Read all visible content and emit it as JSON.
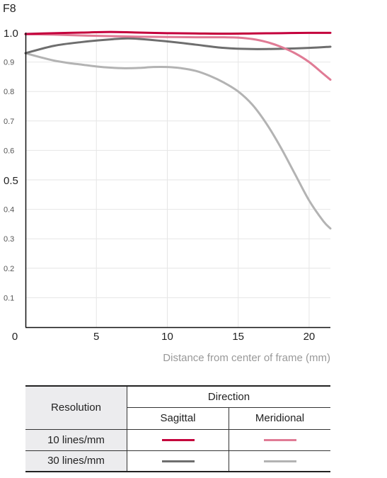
{
  "chart_data": {
    "type": "line",
    "title": "F8",
    "xlabel": "Distance from center of frame (mm)",
    "ylabel": "",
    "xlim": [
      0,
      21.5
    ],
    "ylim": [
      0,
      1.0
    ],
    "x_ticks": [
      {
        "value": 0,
        "label": "0"
      },
      {
        "value": 5,
        "label": "5"
      },
      {
        "value": 10,
        "label": "10"
      },
      {
        "value": 15,
        "label": "15"
      },
      {
        "value": 20,
        "label": "20"
      }
    ],
    "y_ticks": [
      {
        "value": 0.1,
        "label": "0.1",
        "emphasis": false
      },
      {
        "value": 0.2,
        "label": "0.2",
        "emphasis": false
      },
      {
        "value": 0.3,
        "label": "0.3",
        "emphasis": false
      },
      {
        "value": 0.4,
        "label": "0.4",
        "emphasis": false
      },
      {
        "value": 0.5,
        "label": "0.5",
        "emphasis": true
      },
      {
        "value": 0.6,
        "label": "0.6",
        "emphasis": false
      },
      {
        "value": 0.7,
        "label": "0.7",
        "emphasis": false
      },
      {
        "value": 0.8,
        "label": "0.8",
        "emphasis": false
      },
      {
        "value": 0.9,
        "label": "0.9",
        "emphasis": false
      },
      {
        "value": 1.0,
        "label": "1.0",
        "emphasis": true
      }
    ],
    "grid": true,
    "series": [
      {
        "key": "s10",
        "color": "#c4003c",
        "x": [
          0,
          2,
          4,
          6,
          8,
          10,
          12,
          14,
          16,
          18,
          20,
          21.5
        ],
        "y": [
          0.995,
          0.998,
          1.0,
          1.002,
          1.0,
          0.998,
          0.997,
          0.996,
          0.997,
          0.998,
          0.999,
          0.999
        ]
      },
      {
        "key": "m10",
        "color": "#e07b95",
        "x": [
          0,
          2,
          4,
          6,
          8,
          10,
          12,
          14,
          15,
          16,
          17,
          18,
          19,
          20,
          21,
          21.5
        ],
        "y": [
          0.995,
          0.993,
          0.99,
          0.988,
          0.986,
          0.985,
          0.984,
          0.984,
          0.983,
          0.978,
          0.968,
          0.952,
          0.93,
          0.9,
          0.86,
          0.84
        ]
      },
      {
        "key": "s30",
        "color": "#6e6e6e",
        "x": [
          0,
          2,
          4,
          6,
          7.5,
          10,
          12,
          14,
          16,
          18,
          20,
          21.5
        ],
        "y": [
          0.93,
          0.955,
          0.968,
          0.977,
          0.98,
          0.97,
          0.959,
          0.948,
          0.944,
          0.945,
          0.948,
          0.952
        ]
      },
      {
        "key": "m30",
        "color": "#b3b3b3",
        "x": [
          0,
          1,
          2,
          3,
          4,
          5,
          6,
          7,
          8,
          9,
          10,
          11,
          12,
          13,
          14,
          15,
          16,
          17,
          18,
          19,
          20,
          21,
          21.5
        ],
        "y": [
          0.93,
          0.917,
          0.905,
          0.897,
          0.891,
          0.885,
          0.881,
          0.879,
          0.88,
          0.883,
          0.883,
          0.879,
          0.87,
          0.853,
          0.83,
          0.8,
          0.755,
          0.69,
          0.61,
          0.52,
          0.43,
          0.36,
          0.335
        ]
      }
    ]
  },
  "legend_table": {
    "resolution_header": "Resolution",
    "direction_header": "Direction",
    "sagittal_label": "Sagittal",
    "meridional_label": "Meridional",
    "rows": [
      {
        "label": "10 lines/mm",
        "sagittal_color": "#c4003c",
        "meridional_color": "#e07b95"
      },
      {
        "label": "30 lines/mm",
        "sagittal_color": "#6e6e6e",
        "meridional_color": "#b3b3b3"
      }
    ]
  }
}
